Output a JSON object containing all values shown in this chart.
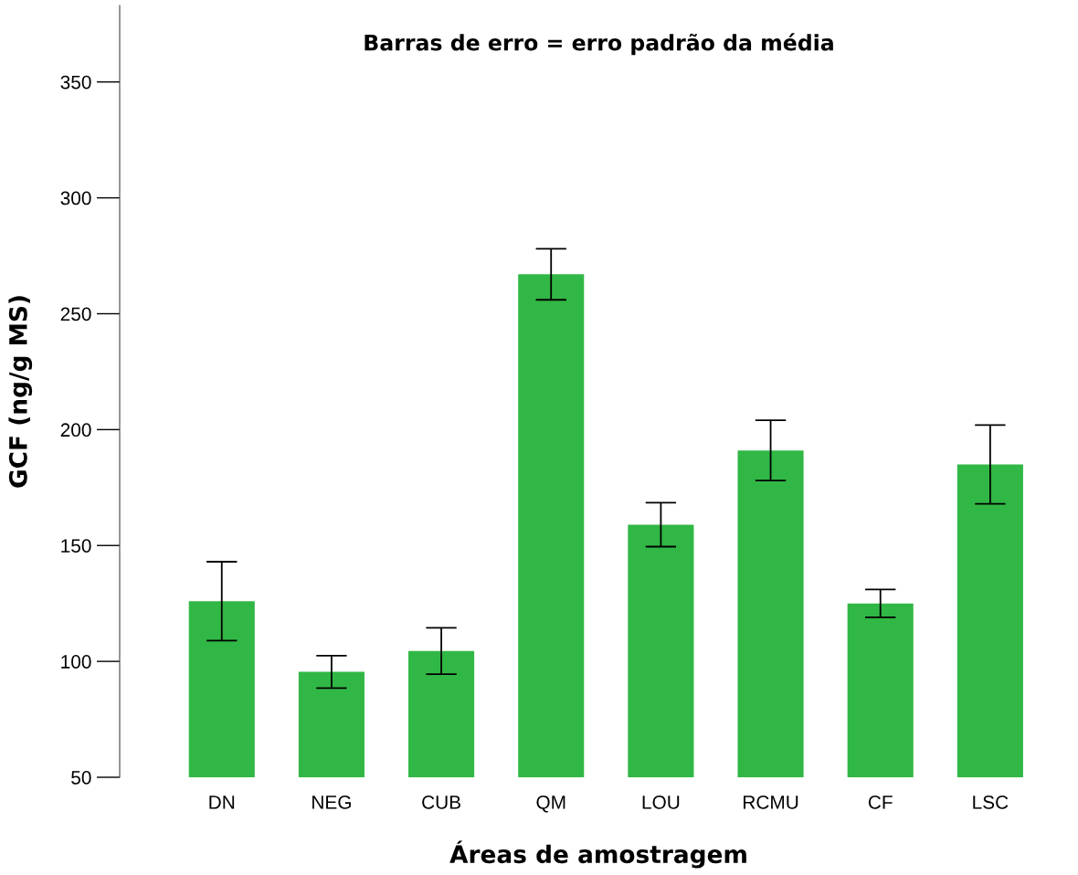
{
  "chart_data": {
    "type": "bar",
    "title": "Barras de erro = erro padrão da média",
    "xlabel": "Áreas de amostragem",
    "ylabel": "GCF (ng/g MS)",
    "categories": [
      "DN",
      "NEG",
      "CUB",
      "QM",
      "LOU",
      "RCMU",
      "CF",
      "LSC"
    ],
    "values": [
      126,
      95.5,
      104.5,
      267,
      159,
      191,
      125,
      185
    ],
    "errors": [
      17,
      7,
      10,
      11,
      9.5,
      13,
      6,
      17
    ],
    "color": "#31b745",
    "ylim": [
      50,
      383
    ],
    "yticks": [
      50,
      100,
      150,
      200,
      250,
      300,
      350
    ],
    "grid": false
  }
}
